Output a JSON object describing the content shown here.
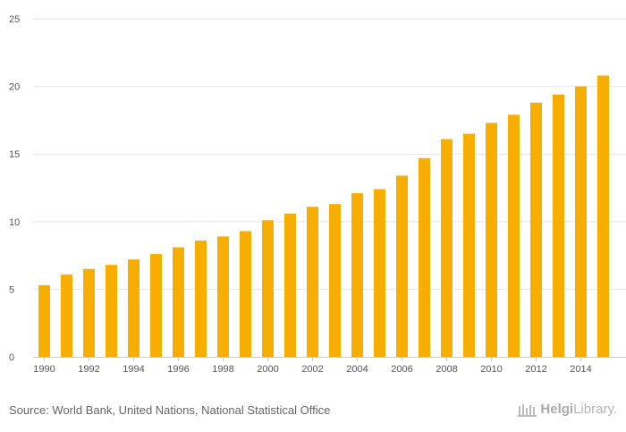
{
  "chart_data": {
    "type": "bar",
    "title": "",
    "xlabel": "",
    "ylabel": "",
    "ylim": [
      0,
      25
    ],
    "yticks": [
      0,
      5,
      10,
      15,
      20,
      25
    ],
    "grid": true,
    "bar_color": "#F7AE00",
    "categories": [
      "1990",
      "1991",
      "1992",
      "1993",
      "1994",
      "1995",
      "1996",
      "1997",
      "1998",
      "1999",
      "2000",
      "2001",
      "2002",
      "2003",
      "2004",
      "2005",
      "2006",
      "2007",
      "2008",
      "2009",
      "2010",
      "2011",
      "2012",
      "2013",
      "2014",
      "2015"
    ],
    "x_tick_labels": [
      "1990",
      "1992",
      "1994",
      "1996",
      "1998",
      "2000",
      "2002",
      "2004",
      "2006",
      "2008",
      "2010",
      "2012",
      "2014"
    ],
    "values": [
      5.3,
      6.1,
      6.5,
      6.8,
      7.2,
      7.6,
      8.1,
      8.6,
      8.9,
      9.3,
      10.1,
      10.6,
      11.1,
      11.3,
      12.1,
      12.4,
      13.4,
      14.7,
      16.1,
      16.5,
      17.3,
      17.9,
      18.8,
      19.4,
      20.0,
      20.8
    ]
  },
  "footer": {
    "source": "Source: World Bank, United Nations, National Statistical Office",
    "logo_bold": "Helgi",
    "logo_light": "Library."
  }
}
